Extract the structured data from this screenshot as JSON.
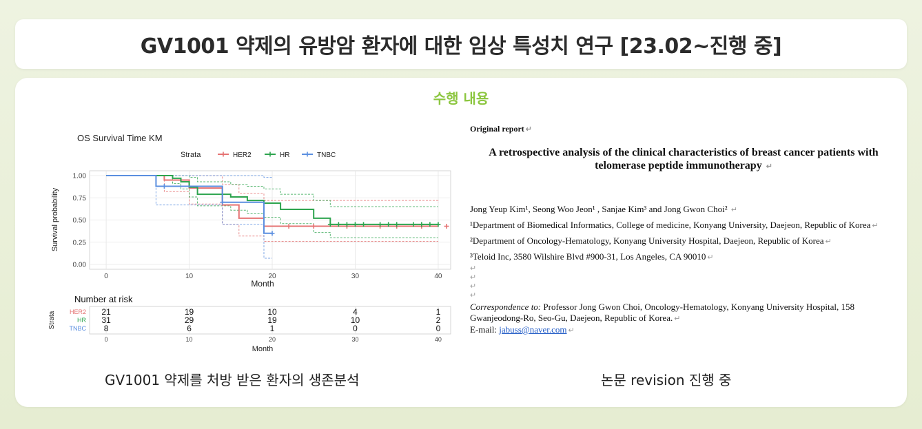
{
  "header": {
    "title": "GV1001 약제의 유방암 환자에 대한 임상 특성치 연구 [23.02~진행 중]"
  },
  "section": {
    "label": "수행 내용"
  },
  "km_chart": {
    "title": "OS Survival Time KM",
    "strata_label": "Strata",
    "xlabel": "Month",
    "ylabel": "Survival probability",
    "x_ticks": [
      "0",
      "10",
      "20",
      "30",
      "40"
    ],
    "y_ticks": [
      "1.00",
      "0.75",
      "0.50",
      "0.25",
      "0.00"
    ],
    "risk_title": "Number at risk",
    "risk_ylabel": "Strata",
    "risk_xlabel": "Month"
  },
  "chart_data": {
    "type": "line",
    "title": "OS Survival Time KM",
    "xlabel": "Month",
    "ylabel": "Survival probability",
    "xlim": [
      0,
      42
    ],
    "ylim": [
      0,
      1
    ],
    "legend": "top",
    "grid": true,
    "series": [
      {
        "name": "HER2",
        "color": "#e57373",
        "x": [
          0,
          7,
          10,
          14,
          16,
          19,
          40
        ],
        "y": [
          1.0,
          0.95,
          0.86,
          0.67,
          0.52,
          0.43,
          0.43
        ],
        "ci_upper": [
          1.0,
          1.0,
          1.0,
          0.9,
          0.8,
          0.72,
          0.7
        ],
        "ci_lower": [
          1.0,
          0.82,
          0.68,
          0.45,
          0.32,
          0.26,
          0.26
        ],
        "censor_x": [
          22,
          25,
          29,
          33,
          35,
          38,
          41
        ]
      },
      {
        "name": "HR",
        "color": "#2da44e",
        "x": [
          0,
          8,
          9,
          10,
          11,
          15,
          17,
          19,
          21,
          25,
          27,
          40
        ],
        "y": [
          1.0,
          0.97,
          0.93,
          0.87,
          0.79,
          0.76,
          0.72,
          0.69,
          0.62,
          0.52,
          0.45,
          0.45
        ],
        "ci_upper": [
          1.0,
          1.0,
          1.0,
          0.98,
          0.93,
          0.9,
          0.88,
          0.85,
          0.79,
          0.72,
          0.65,
          0.65
        ],
        "ci_lower": [
          1.0,
          0.91,
          0.85,
          0.76,
          0.66,
          0.61,
          0.57,
          0.53,
          0.46,
          0.36,
          0.3,
          0.3
        ],
        "censor_x": [
          27,
          28,
          29,
          30,
          31,
          33,
          34,
          35,
          37,
          38,
          39,
          40
        ]
      },
      {
        "name": "TNBC",
        "color": "#5b8fe0",
        "x": [
          0,
          6,
          12,
          14,
          19,
          20
        ],
        "y": [
          1.0,
          0.88,
          0.88,
          0.7,
          0.35,
          0.35
        ],
        "ci_upper": [
          1.0,
          1.0,
          1.0,
          1.0,
          0.98,
          0.98
        ],
        "ci_lower": [
          1.0,
          0.67,
          0.67,
          0.45,
          0.07,
          0.07
        ],
        "censor_x": [
          7,
          14,
          20
        ]
      }
    ],
    "risk_table": {
      "times": [
        0,
        10,
        20,
        30,
        40
      ],
      "rows": [
        {
          "name": "HER2",
          "color": "#e57373",
          "values": [
            21,
            19,
            10,
            4,
            1
          ]
        },
        {
          "name": "HR",
          "color": "#2da44e",
          "values": [
            31,
            29,
            19,
            10,
            2
          ]
        },
        {
          "name": "TNBC",
          "color": "#5b8fe0",
          "values": [
            8,
            6,
            1,
            0,
            0
          ]
        }
      ]
    }
  },
  "captions": {
    "left": "GV1001 약제를 처방 받은 환자의 생존분석",
    "right": "논문 revision 진행 중"
  },
  "paper": {
    "header": "Original report",
    "title": "A retrospective analysis of the clinical characteristics of breast cancer patients with telomerase peptide immunotherapy",
    "authors": "Jong Yeup Kim¹, Seong Woo Jeon¹ , Sanjae Kim³ and Jong Gwon Choi²",
    "affiliations": [
      "¹Department of Biomedical Informatics, College of medicine, Konyang University, Daejeon, Republic of Korea",
      "²Department of Oncology-Hematology, Konyang University Hospital, Daejeon, Republic of Korea",
      "³Teloid Inc, 3580 Wilshire Blvd #900-31, Los Angeles, CA 90010"
    ],
    "correspondence_label": "Correspondence to:",
    "correspondence": "Professor Jong Gwon Choi, Oncology-Hematology, Konyang University Hospital, 158 Gwanjeodong-Ro, Seo-Gu, Daejeon, Republic of Korea.",
    "email_label": "E-mail:",
    "email": "jabuss@naver.com",
    "return_mark": "↵"
  }
}
